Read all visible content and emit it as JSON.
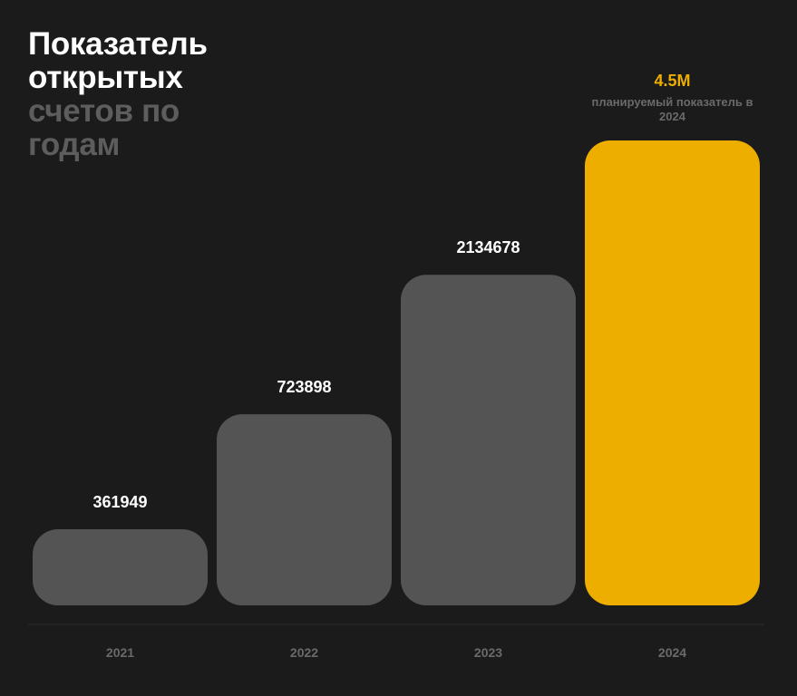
{
  "title": {
    "line1": "Показатель",
    "line2": "открытых",
    "line3": "счетов по",
    "line4": "годам"
  },
  "colors": {
    "background": "#1b1b1b",
    "bar": "#545454",
    "highlight": "#eeae00",
    "value_text": "#ffffff",
    "muted_text": "#6a6a6a",
    "axis": "#2e2e2e"
  },
  "chart_data": {
    "type": "bar",
    "title": "Показатель открытых счетов по годам",
    "categories": [
      "2021",
      "2022",
      "2023",
      "2024"
    ],
    "values": [
      361949,
      723898,
      2134678,
      4500000
    ],
    "data_labels": [
      "361949",
      "723898",
      "2134678",
      "4.5M"
    ],
    "highlight_index": 3,
    "annotation": "планируемый показатель в 2024",
    "ylim": [
      0,
      4500000
    ],
    "grid": false,
    "legend": "none"
  }
}
